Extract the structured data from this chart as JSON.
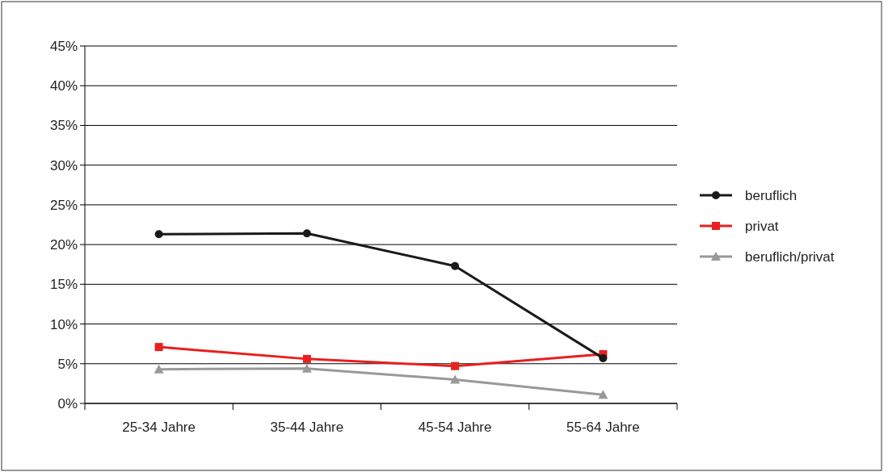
{
  "chart_data": {
    "type": "line",
    "categories": [
      "25-34 Jahre",
      "35-44 Jahre",
      "45-54 Jahre",
      "55-64 Jahre"
    ],
    "series": [
      {
        "name": "beruflich",
        "color": "#1a1a1a",
        "marker": "circle",
        "values": [
          21.3,
          21.4,
          17.3,
          5.7
        ]
      },
      {
        "name": "privat",
        "color": "#e8201e",
        "marker": "square",
        "values": [
          7.1,
          5.6,
          4.7,
          6.2
        ]
      },
      {
        "name": "beruflich/privat",
        "color": "#999999",
        "marker": "triangle",
        "values": [
          4.3,
          4.4,
          3.0,
          1.1
        ]
      }
    ],
    "ylim": [
      0,
      45
    ],
    "yticks": [
      {
        "value": 0,
        "label": "0%"
      },
      {
        "value": 5,
        "label": "5%"
      },
      {
        "value": 10,
        "label": "10%"
      },
      {
        "value": 15,
        "label": "15%"
      },
      {
        "value": 20,
        "label": "20%"
      },
      {
        "value": 25,
        "label": "25%"
      },
      {
        "value": 30,
        "label": "30%"
      },
      {
        "value": 35,
        "label": "35%"
      },
      {
        "value": 40,
        "label": "40%"
      },
      {
        "value": 45,
        "label": "45%"
      }
    ],
    "grid": "y",
    "legend": "right",
    "line_style": "solid"
  }
}
